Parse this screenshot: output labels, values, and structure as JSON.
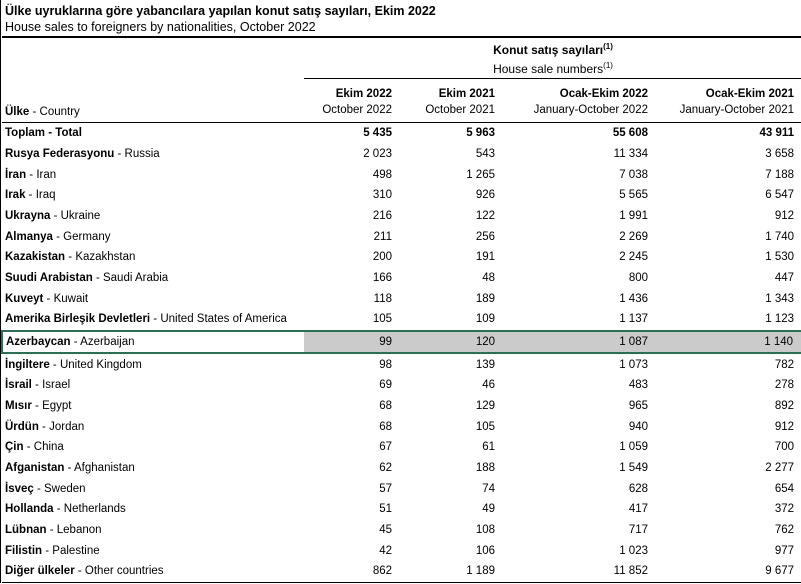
{
  "title": {
    "tr": "Ülke uyruklarına göre yabancılara yapılan konut satış sayıları, Ekim 2022",
    "en": "House sales to foreigners by nationalities, October 2022"
  },
  "colors": {
    "highlight_bg": "#cbcbcb",
    "highlight_border": "#2e6e54"
  },
  "table": {
    "sep": " - ",
    "group_header": {
      "tr": "Konut satış sayıları",
      "en": "House sale numbers",
      "footnote_marker": "(1)"
    },
    "country_header": {
      "tr": "Ülke",
      "en": "Country"
    },
    "columns": [
      {
        "tr": "Ekim 2022",
        "en": "October 2022"
      },
      {
        "tr": "Ekim 2021",
        "en": "October 2021"
      },
      {
        "tr": "Ocak-Ekim 2022",
        "en": "January-October 2022"
      },
      {
        "tr": "Ocak-Ekim 2021",
        "en": "January-October 2021"
      }
    ],
    "rows": [
      {
        "tr": "Toplam",
        "en": "Total",
        "values": [
          "5 435",
          "5 963",
          "55 608",
          "43 911"
        ],
        "bold": true
      },
      {
        "tr": "Rusya Federasyonu",
        "en": "Russia",
        "values": [
          "2 023",
          "543",
          "11 334",
          "3 658"
        ]
      },
      {
        "tr": "İran",
        "en": "Iran",
        "values": [
          "498",
          "1 265",
          "7 038",
          "7 188"
        ]
      },
      {
        "tr": "Irak",
        "en": "Iraq",
        "values": [
          "310",
          "926",
          "5 565",
          "6 547"
        ]
      },
      {
        "tr": "Ukrayna",
        "en": "Ukraine",
        "values": [
          "216",
          "122",
          "1 991",
          "912"
        ]
      },
      {
        "tr": "Almanya",
        "en": "Germany",
        "values": [
          "211",
          "256",
          "2 269",
          "1 740"
        ]
      },
      {
        "tr": "Kazakistan",
        "en": "Kazakhstan",
        "values": [
          "200",
          "191",
          "2 245",
          "1 530"
        ]
      },
      {
        "tr": "Suudi Arabistan",
        "en": "Saudi Arabia",
        "values": [
          "166",
          "48",
          "800",
          "447"
        ]
      },
      {
        "tr": "Kuveyt",
        "en": "Kuwait",
        "values": [
          "118",
          "189",
          "1 436",
          "1 343"
        ]
      },
      {
        "tr": "Amerika Birleşik Devletleri",
        "en": "United States of America",
        "values": [
          "105",
          "109",
          "1 137",
          "1 123"
        ]
      },
      {
        "tr": "Azerbaycan",
        "en": "Azerbaijan",
        "values": [
          "99",
          "120",
          "1 087",
          "1 140"
        ],
        "highlighted": true
      },
      {
        "tr": "İngiltere",
        "en": "United Kingdom",
        "values": [
          "98",
          "139",
          "1 073",
          "782"
        ]
      },
      {
        "tr": "İsrail",
        "en": "Israel",
        "values": [
          "69",
          "46",
          "483",
          "278"
        ]
      },
      {
        "tr": "Mısır",
        "en": "Egypt",
        "values": [
          "68",
          "129",
          "965",
          "892"
        ]
      },
      {
        "tr": "Ürdün",
        "en": "Jordan",
        "values": [
          "68",
          "105",
          "940",
          "912"
        ]
      },
      {
        "tr": "Çin",
        "en": "China",
        "values": [
          "67",
          "61",
          "1 059",
          "700"
        ]
      },
      {
        "tr": "Afganistan",
        "en": "Afghanistan",
        "values": [
          "62",
          "188",
          "1 549",
          "2 277"
        ]
      },
      {
        "tr": "İsveç",
        "en": "Sweden",
        "values": [
          "57",
          "74",
          "628",
          "654"
        ]
      },
      {
        "tr": "Hollanda",
        "en": "Netherlands",
        "values": [
          "51",
          "49",
          "417",
          "372"
        ]
      },
      {
        "tr": "Lübnan",
        "en": "Lebanon",
        "values": [
          "45",
          "108",
          "717",
          "762"
        ]
      },
      {
        "tr": "Filistin",
        "en": "Palestine",
        "values": [
          "42",
          "106",
          "1 023",
          "977"
        ]
      },
      {
        "tr": "Diğer ülkeler",
        "en": "Other countries",
        "values": [
          "862",
          "1 189",
          "11 852",
          "9 677"
        ]
      }
    ]
  }
}
